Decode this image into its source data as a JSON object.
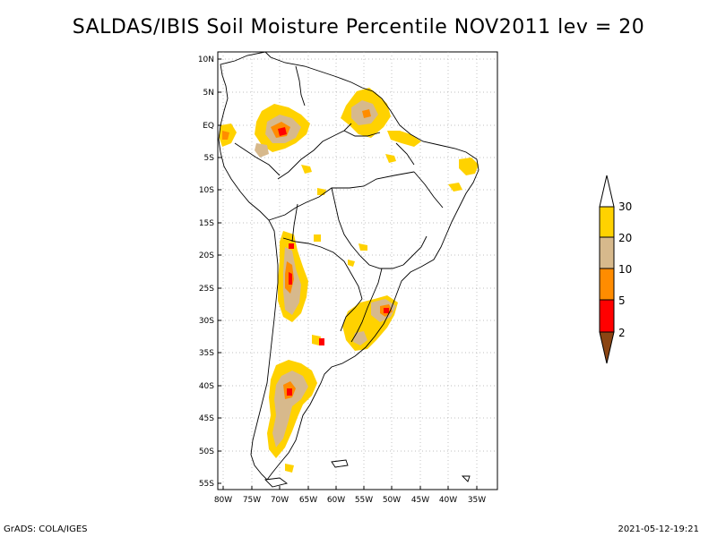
{
  "title": "SALDAS/IBIS Soil Moisture Percentile NOV2011 lev = 20",
  "footer": {
    "left": "GrADS: COLA/IGES",
    "right": "2021-05-12-19:21"
  },
  "map": {
    "lat_labels": [
      "10N",
      "5N",
      "EQ",
      "5S",
      "10S",
      "15S",
      "20S",
      "25S",
      "30S",
      "35S",
      "40S",
      "45S",
      "50S",
      "55S"
    ],
    "lon_labels": [
      "80W",
      "75W",
      "70W",
      "65W",
      "60W",
      "55W",
      "50W",
      "45W",
      "40W",
      "35W"
    ]
  },
  "legend": {
    "labels": [
      "30",
      "20",
      "10",
      "5",
      "2"
    ],
    "colors": {
      "above": "#ffffff",
      "c20_30": "#ffd200",
      "c10_20": "#d7b98c",
      "c5_10": "#ff8c00",
      "c2_5": "#ff0000",
      "below": "#8b4513"
    }
  }
}
